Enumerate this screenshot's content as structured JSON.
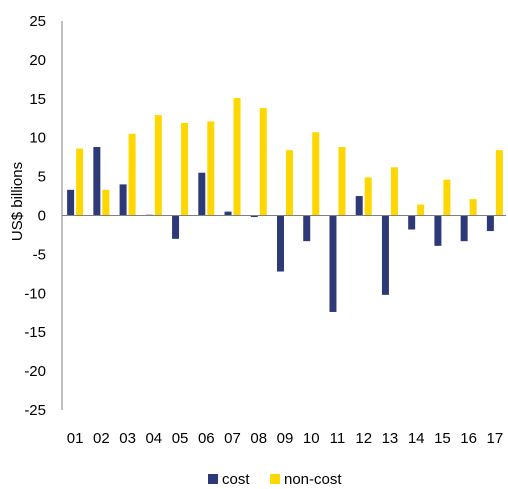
{
  "chart_data": {
    "type": "bar",
    "title": "",
    "xlabel": "",
    "ylabel": "US$ billions",
    "ylim": [
      -25,
      25
    ],
    "yticks": [
      25,
      20,
      15,
      10,
      5,
      0,
      -5,
      -10,
      -15,
      -20,
      -25
    ],
    "categories": [
      "01",
      "02",
      "03",
      "04",
      "05",
      "06",
      "07",
      "08",
      "09",
      "10",
      "11",
      "12",
      "13",
      "14",
      "15",
      "16",
      "17"
    ],
    "series": [
      {
        "name": "cost",
        "color": "#2e3a78",
        "values": [
          3.3,
          8.8,
          4.0,
          0.1,
          -3.0,
          5.5,
          0.5,
          -0.2,
          -7.2,
          -3.3,
          -12.4,
          2.5,
          -10.2,
          -1.8,
          -3.9,
          -3.3,
          -2.0
        ]
      },
      {
        "name": "non-cost",
        "color": "#ffd700",
        "values": [
          8.6,
          3.3,
          10.5,
          12.9,
          11.9,
          12.1,
          15.1,
          13.8,
          8.4,
          10.7,
          8.8,
          4.9,
          6.2,
          1.4,
          4.6,
          2.1,
          8.4
        ]
      }
    ],
    "grid": false,
    "legend": "bottom"
  }
}
